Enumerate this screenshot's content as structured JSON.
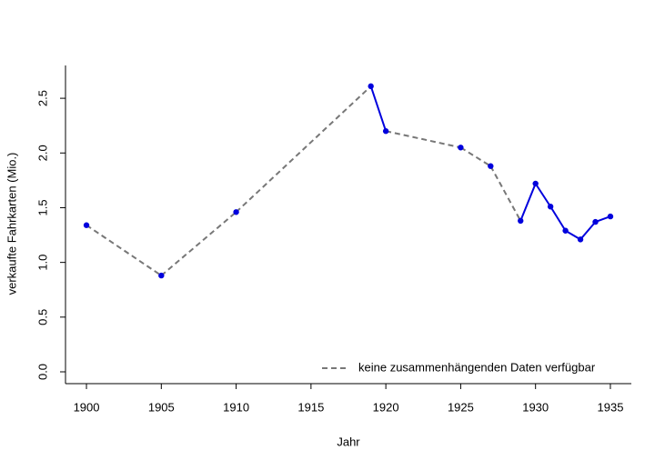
{
  "chart_data": {
    "type": "line",
    "x_label": "Jahr",
    "y_label": "verkaufte Fahrkarten (Mio.)",
    "x": [
      1900,
      1905,
      1910,
      1919,
      1920,
      1925,
      1927,
      1929,
      1930,
      1931,
      1932,
      1933,
      1934,
      1935
    ],
    "series": [
      {
        "name": "keine zusammenhängenden Daten verfügbar",
        "color": "#0000dd",
        "values": [
          1.34,
          0.88,
          1.46,
          2.61,
          2.2,
          2.05,
          1.88,
          1.38,
          1.72,
          1.51,
          1.29,
          1.21,
          1.37,
          1.42
        ]
      }
    ],
    "line_styles": [
      "dashed",
      "dashed",
      "dashed",
      "solid",
      "dashed",
      "dashed",
      "dashed",
      "solid",
      "solid",
      "solid",
      "solid",
      "solid",
      "solid"
    ],
    "dashed_color": "#777777",
    "xlim": [
      1898.6,
      1936.4
    ],
    "ylim": [
      -0.108,
      2.8
    ],
    "xticks": [
      1900,
      1905,
      1910,
      1915,
      1920,
      1925,
      1930,
      1935
    ],
    "yticks": [
      {
        "value": 0,
        "label": "0.0"
      },
      {
        "value": 0.5,
        "label": "0.5"
      },
      {
        "value": 1,
        "label": "1.0"
      },
      {
        "value": 1.5,
        "label": "1.5"
      },
      {
        "value": 2,
        "label": "2.0"
      },
      {
        "value": 2.5,
        "label": "2.5"
      }
    ],
    "legend": "bottomright",
    "grid": false
  }
}
